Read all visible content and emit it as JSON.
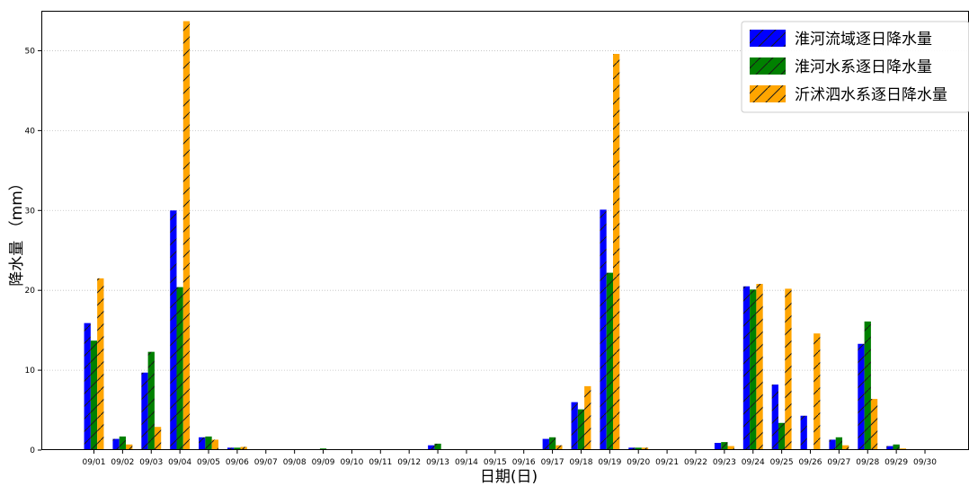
{
  "chart_data": {
    "type": "bar",
    "xlabel": "日期(日)",
    "ylabel": "降水量 （mm）",
    "ylim": [
      0,
      55
    ],
    "yticks": [
      0,
      10,
      20,
      30,
      40,
      50
    ],
    "grid": "horizontal-dotted",
    "legend_position": "top-right",
    "categories": [
      "09/01",
      "09/02",
      "09/03",
      "09/04",
      "09/05",
      "09/06",
      "09/07",
      "09/08",
      "09/09",
      "09/10",
      "09/11",
      "09/12",
      "09/13",
      "09/14",
      "09/15",
      "09/16",
      "09/17",
      "09/18",
      "09/19",
      "09/20",
      "09/21",
      "09/22",
      "09/23",
      "09/24",
      "09/25",
      "09/26",
      "09/27",
      "09/28",
      "09/29",
      "09/30"
    ],
    "series": [
      {
        "name": "淮河流域逐日降水量",
        "color": "#0000ff",
        "hatch": "/",
        "values": [
          15.9,
          1.4,
          9.7,
          30.0,
          1.6,
          0.3,
          0.1,
          0.0,
          0.1,
          0.0,
          0.0,
          0.1,
          0.6,
          0.0,
          0.0,
          0.1,
          1.4,
          6.0,
          30.1,
          0.3,
          0.0,
          0.0,
          0.9,
          20.5,
          8.2,
          4.3,
          1.3,
          13.3,
          0.5,
          0.0
        ]
      },
      {
        "name": "淮河水系逐日降水量",
        "color": "#008000",
        "hatch": "/",
        "values": [
          13.7,
          1.7,
          12.3,
          20.4,
          1.7,
          0.3,
          0.0,
          0.0,
          0.2,
          0.0,
          0.0,
          0.1,
          0.8,
          0.0,
          0.0,
          0.1,
          1.6,
          5.1,
          22.2,
          0.3,
          0.0,
          0.0,
          1.0,
          20.1,
          3.4,
          0.0,
          1.6,
          16.1,
          0.7,
          0.0
        ]
      },
      {
        "name": "沂沭泗水系逐日降水量",
        "color": "#ffa500",
        "hatch": "/",
        "values": [
          21.5,
          0.7,
          2.9,
          53.7,
          1.3,
          0.4,
          0.0,
          0.0,
          0.0,
          0.0,
          0.0,
          0.0,
          0.0,
          0.0,
          0.0,
          0.1,
          0.6,
          8.0,
          49.6,
          0.3,
          0.1,
          0.0,
          0.5,
          20.8,
          20.2,
          14.6,
          0.6,
          6.4,
          0.2,
          0.1
        ]
      }
    ]
  }
}
